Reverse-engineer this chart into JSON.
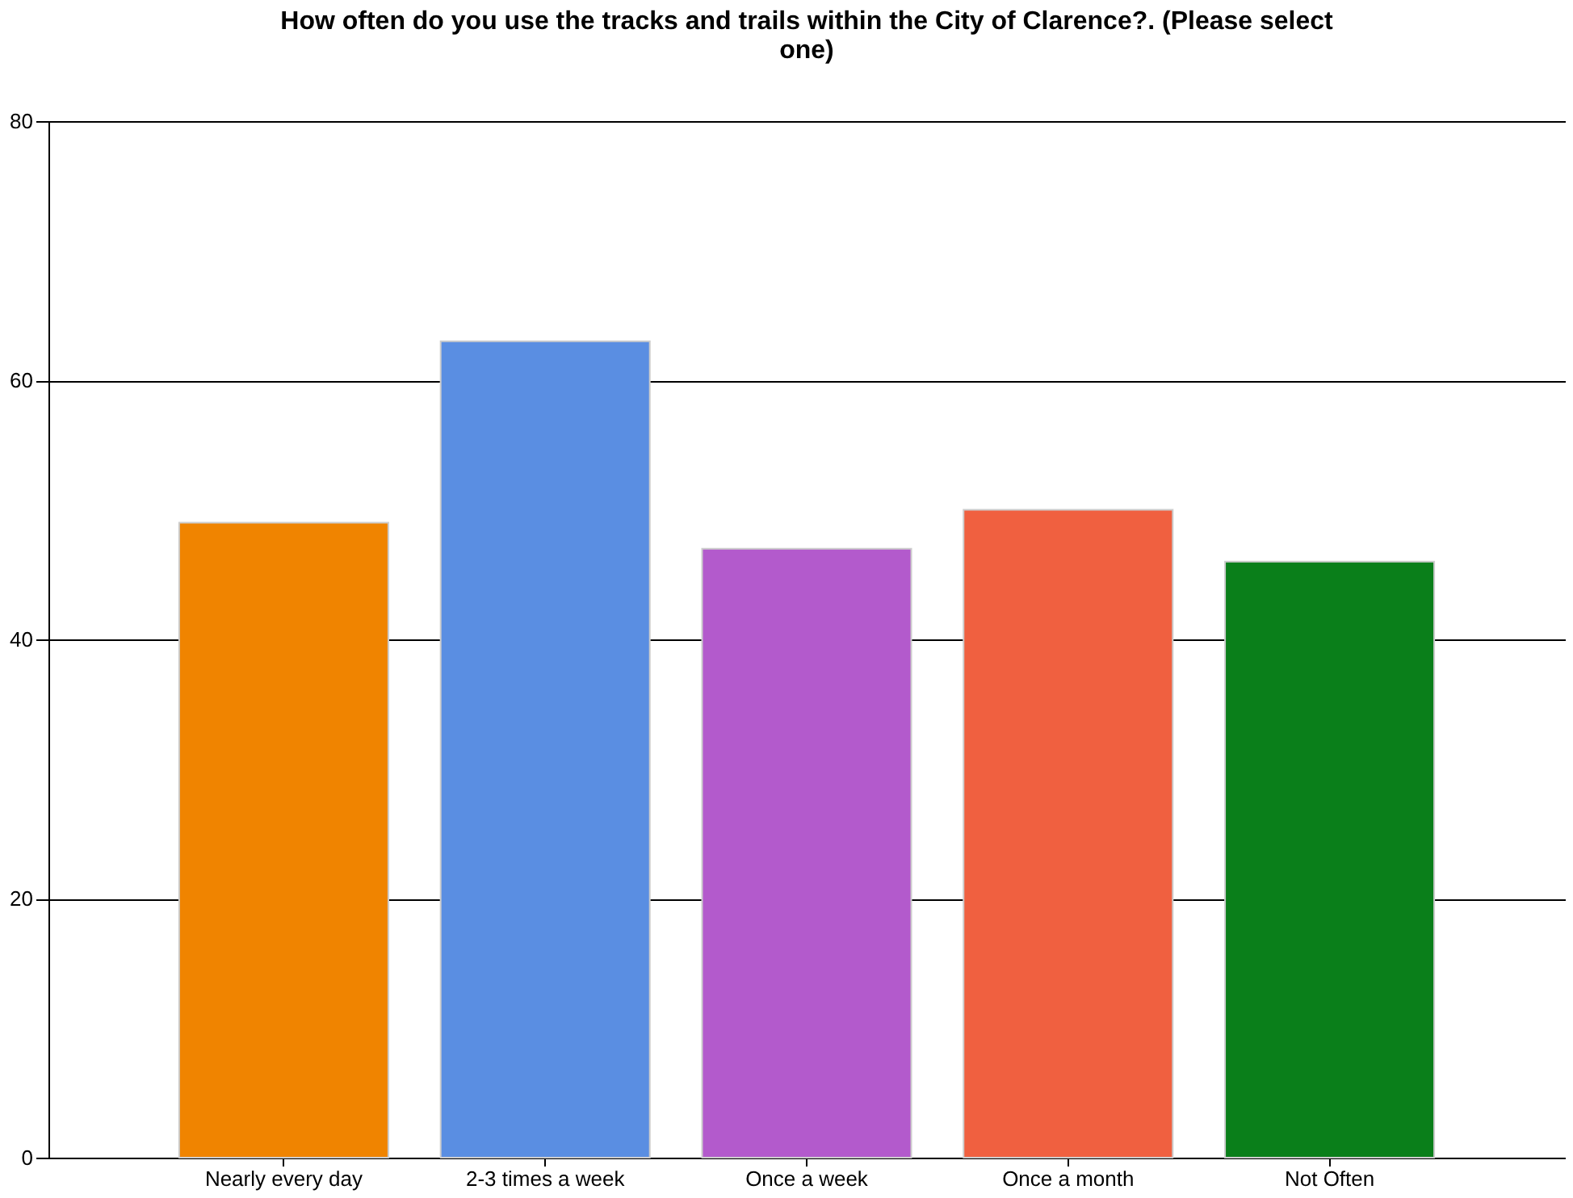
{
  "chart_data": {
    "type": "bar",
    "title": "How often do you use the tracks and trails within the City of Clarence?.  (Please select one)",
    "categories": [
      "Nearly every day",
      "2-3 times a week",
      "Once a week",
      "Once a month",
      "Not Often"
    ],
    "values": [
      49,
      63,
      47,
      50,
      46
    ],
    "colors": [
      "#f08400",
      "#5a8ee2",
      "#b35acc",
      "#f06040",
      "#0a7f1a"
    ],
    "ylim": [
      0,
      80
    ],
    "yticks": [
      0,
      20,
      40,
      60,
      80
    ],
    "grid": "y",
    "legend": false
  }
}
